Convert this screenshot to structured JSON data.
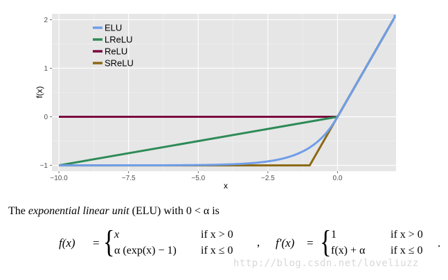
{
  "chart_data": {
    "type": "line",
    "xlabel": "x",
    "ylabel": "f(x)",
    "xlim": [
      -10.25,
      2.1
    ],
    "ylim": [
      -1.12,
      2.12
    ],
    "x_ticks": [
      -10.0,
      -7.5,
      -5.0,
      -2.5,
      0.0
    ],
    "x_tick_labels": [
      "−10.0",
      "−7.5",
      "−5.0",
      "−2.5",
      "0.0"
    ],
    "y_ticks": [
      -1,
      0,
      1,
      2
    ],
    "y_tick_labels": [
      "−1",
      "0",
      "1",
      "2"
    ],
    "grid": true,
    "legend_position": "top-left",
    "series": [
      {
        "name": "ELU",
        "color": "#6f9ee8",
        "formula": "elu",
        "x": [
          -10,
          -6,
          -4,
          -3,
          -2,
          -1.5,
          -1,
          -0.5,
          -0.25,
          0,
          1,
          2
        ],
        "y": [
          -1.0,
          -0.998,
          -0.982,
          -0.95,
          -0.865,
          -0.777,
          -0.632,
          -0.393,
          -0.221,
          0,
          1,
          2
        ]
      },
      {
        "name": "LReLU",
        "color": "#2e8b57",
        "x": [
          -10,
          0,
          1,
          2
        ],
        "y": [
          -1,
          0,
          1,
          2
        ]
      },
      {
        "name": "ReLU",
        "color": "#7b0a3f",
        "x": [
          -10,
          0,
          1,
          2
        ],
        "y": [
          0,
          0,
          1,
          2
        ]
      },
      {
        "name": "SReLU",
        "color": "#8b6914",
        "x": [
          -10,
          -1,
          0,
          1,
          2
        ],
        "y": [
          -1,
          -1,
          0,
          1,
          2
        ]
      }
    ]
  },
  "caption": {
    "prefix": "The ",
    "emphasis": "exponential linear unit",
    "suffix": " (ELU) with 0 < α is"
  },
  "formula_f": {
    "lhs": "f(x)",
    "eq": "=",
    "case1_expr": "x",
    "case1_cond": "if x > 0",
    "case2_expr": "α (exp(x) − 1)",
    "case2_cond": "if x ≤ 0"
  },
  "formula_sep": ",",
  "formula_fprime": {
    "lhs": "f′(x)",
    "eq": "=",
    "case1_expr": "1",
    "case1_cond": "if x > 0",
    "case2_expr": "f(x) + α",
    "case2_cond": "if x ≤ 0"
  },
  "formula_end": ".",
  "watermark": "http://blog.csdn.net/loveliuzz"
}
